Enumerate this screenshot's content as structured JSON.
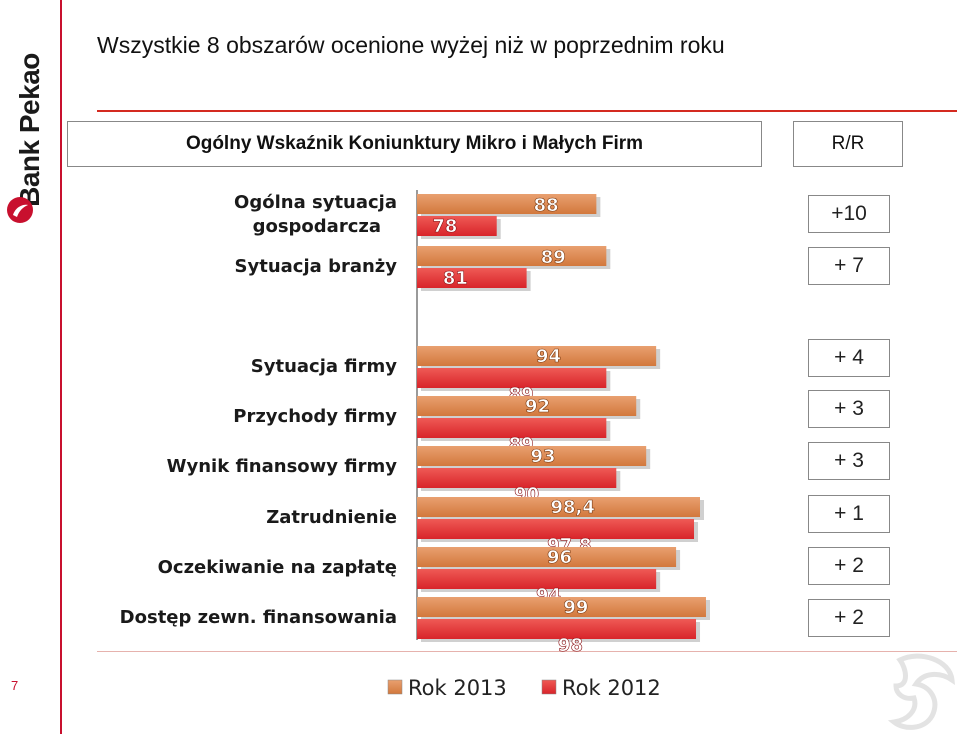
{
  "brand": {
    "name": "Bank Pekao",
    "accent": "#c8102e"
  },
  "slide": {
    "title": "Wszystkie 8 obszarów ocenione wyżej niż w poprzednim roku",
    "header": "Ogólny Wskaźnik Koniunktury Mikro i Małych Firm",
    "rr_label": "R/R",
    "page_number": "7"
  },
  "chart_data": {
    "type": "bar",
    "orientation": "horizontal",
    "categories": [
      "Ogólna sytuacja gospodarcza",
      "Sytuacja branży",
      "Sytuacja firmy",
      "Przychody firmy",
      "Wynik finansowy firmy",
      "Zatrudnienie",
      "Oczekiwanie na zapłatę",
      "Dostęp zewn. finansowania"
    ],
    "category_lines": [
      [
        "Ogólna sytuacja",
        "gospodarcza"
      ],
      [
        "Sytuacja branży"
      ],
      [
        "Sytuacja firmy"
      ],
      [
        "Przychody firmy"
      ],
      [
        "Wynik finansowy firmy"
      ],
      [
        "Zatrudnienie"
      ],
      [
        "Oczekiwanie na zapłatę"
      ],
      [
        "Dostęp zewn. finansowania"
      ]
    ],
    "series": [
      {
        "name": "Rok 2013",
        "color": "#d2783c",
        "values": [
          88,
          89,
          94,
          92,
          93,
          98.4,
          96,
          99
        ],
        "labels": [
          "88",
          "89",
          "94",
          "92",
          "93",
          "98,4",
          "96",
          "99"
        ]
      },
      {
        "name": "Rok 2012",
        "color": "#d8242a",
        "values": [
          78,
          81,
          89,
          89,
          90,
          97.8,
          94,
          98
        ],
        "labels": [
          "78",
          "81",
          "89",
          "89",
          "90",
          "97,8",
          "94",
          "98"
        ]
      }
    ],
    "rr": [
      "+10",
      "+ 7",
      "+ 4",
      "+ 3",
      "+ 3",
      "+ 1",
      "+ 2",
      "+ 2"
    ],
    "legend_position": "bottom",
    "grid": false
  }
}
